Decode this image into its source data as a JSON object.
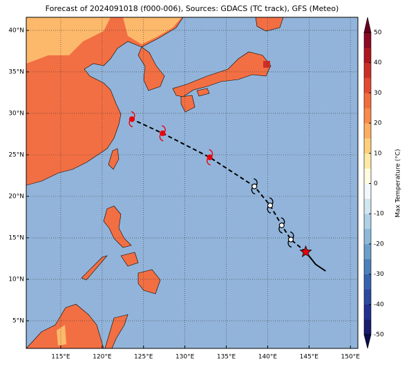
{
  "title": "Forecast of 2024091018 (f000-006), Sources: GDACS (TC track), GFS (Meteo)",
  "map": {
    "xlim": [
      110.83,
      150.9
    ],
    "ylim": [
      1.67,
      41.58
    ],
    "grid": true,
    "xticks": [
      {
        "value": 115,
        "label": "115°E"
      },
      {
        "value": 120,
        "label": "120°E"
      },
      {
        "value": 125,
        "label": "125°E"
      },
      {
        "value": 130,
        "label": "130°E"
      },
      {
        "value": 135,
        "label": "135°E"
      },
      {
        "value": 140,
        "label": "140°E"
      },
      {
        "value": 145,
        "label": "145°E"
      },
      {
        "value": 150,
        "label": "150°E"
      }
    ],
    "yticks": [
      {
        "value": 5,
        "label": "5°N"
      },
      {
        "value": 10,
        "label": "10°N"
      },
      {
        "value": 15,
        "label": "15°N"
      },
      {
        "value": 20,
        "label": "20°N"
      },
      {
        "value": 25,
        "label": "25°N"
      },
      {
        "value": 30,
        "label": "30°N"
      },
      {
        "value": 35,
        "label": "35°N"
      },
      {
        "value": 40,
        "label": "40°N"
      }
    ]
  },
  "forecast_track": {
    "lon": [
      144.6,
      142.8,
      141.7,
      140.3,
      138.4,
      133,
      127.3,
      123.6
    ],
    "lat": [
      13.3,
      14.8,
      16.5,
      18.9,
      21.2,
      24.7,
      27.6,
      29.3
    ],
    "marker_colors": [
      "#e8000b",
      "#000000",
      "#000000",
      "#000000",
      "#000000",
      "#e8000b",
      "#e8000b",
      "#e8000b"
    ]
  },
  "past_track": {
    "lon": [
      144.6,
      145.8,
      147
    ],
    "lat": [
      13.3,
      11.8,
      11
    ]
  },
  "colorbar": {
    "label": "Max Temperature (°C)",
    "lim": [
      -50,
      50
    ],
    "ticks": [
      -50,
      -40,
      -30,
      -20,
      -10,
      0,
      10,
      20,
      30,
      40,
      50
    ],
    "colors": [
      "#1a1a6e",
      "#21308f",
      "#2a4aa0",
      "#3563ad",
      "#4a80bb",
      "#6b9ecb",
      "#8db8d9",
      "#afd0e6",
      "#d2e6f0",
      "#f2f8fb",
      "#fffbe0",
      "#fee9a8",
      "#fdcf7d",
      "#fcae61",
      "#f88b4b",
      "#f26d3d",
      "#e34a33",
      "#cc2f26",
      "#ae1720",
      "#8c0a22"
    ],
    "extend_colors": [
      "#0d0d50",
      "#67001f"
    ]
  }
}
